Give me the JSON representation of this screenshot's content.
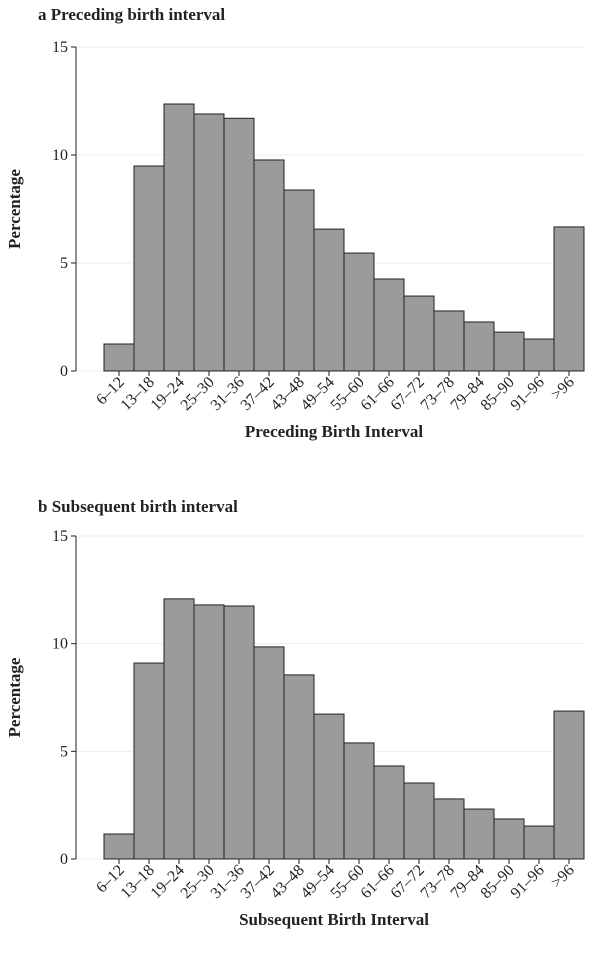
{
  "chart_data": [
    {
      "type": "bar",
      "title": "a Preceding birth interval",
      "ylabel": "Percentage",
      "xlabel": "Preceding Birth Interval",
      "categories": [
        "6–12",
        "13–18",
        "19–24",
        "25–30",
        "31–36",
        "37–42",
        "43–48",
        "49–54",
        "55–60",
        "61–66",
        "67–72",
        "73–78",
        "79–84",
        "85–90",
        "91–96",
        ">96"
      ],
      "values": [
        1.25,
        9.49,
        12.36,
        11.9,
        11.7,
        9.77,
        8.38,
        6.57,
        5.46,
        4.26,
        3.47,
        2.78,
        2.27,
        1.8,
        1.48,
        6.67
      ],
      "color": "#9b9b9b",
      "ylim": [
        0,
        15
      ],
      "yticks": [
        0,
        5,
        10,
        15
      ],
      "grid": true
    },
    {
      "type": "bar",
      "title": "b Subsequent birth interval",
      "ylabel": "Percentage",
      "xlabel": "Subsequent Birth Interval",
      "categories": [
        "6–12",
        "13–18",
        "19–24",
        "25–30",
        "31–36",
        "37–42",
        "43–48",
        "49–54",
        "55–60",
        "61–66",
        "67–72",
        "73–78",
        "79–84",
        "85–90",
        "91–96",
        ">96"
      ],
      "values": [
        1.16,
        9.1,
        12.08,
        11.8,
        11.75,
        9.85,
        8.55,
        6.73,
        5.39,
        4.32,
        3.53,
        2.79,
        2.32,
        1.86,
        1.53,
        6.87
      ],
      "color": "#9b9b9b",
      "ylim": [
        0,
        15
      ],
      "yticks": [
        0,
        5,
        10,
        15
      ],
      "grid": true
    }
  ]
}
